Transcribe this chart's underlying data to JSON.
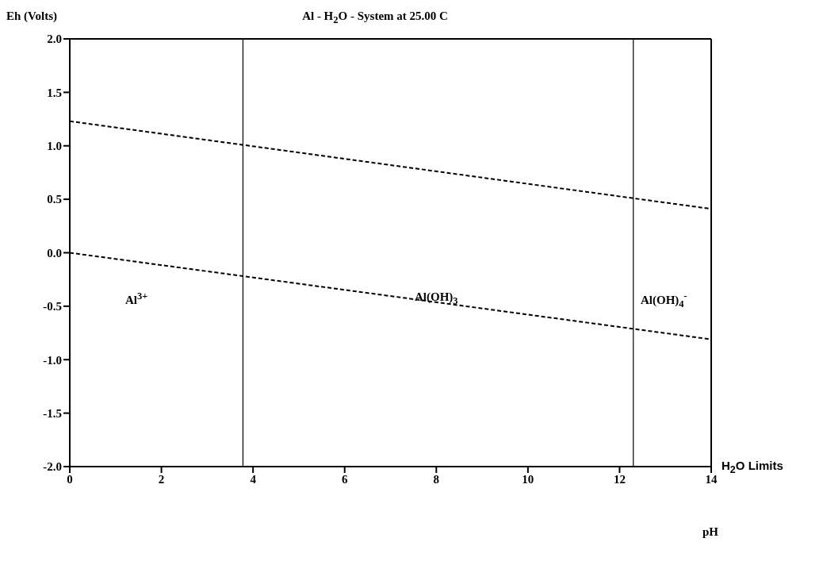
{
  "chart_data": {
    "type": "line",
    "title": "Al - H$_{2}$O - System at 25.00 C",
    "xlabel": "pH",
    "ylabel": "Eh (Volts)",
    "xlim": [
      0,
      14
    ],
    "xticks": [
      0,
      2,
      4,
      6,
      8,
      10,
      12,
      14
    ],
    "ylim": [
      -2,
      2
    ],
    "yticks": [
      {
        "value": -2,
        "label": "-2.0"
      },
      -1.5,
      {
        "value": -1,
        "label": "-1.0"
      },
      -0.5,
      {
        "value": 0,
        "label": "0.0"
      },
      0.5,
      {
        "value": 1,
        "label": "1.0"
      },
      1.5,
      {
        "value": 2,
        "label": "2.0"
      }
    ],
    "legend": false,
    "marker": "none",
    "line_style": "dashed",
    "x": [
      0,
      14
    ],
    "series": [
      {
        "color": "#000000",
        "values": [
          1.23,
          0.41
        ]
      },
      {
        "color": "#000000",
        "values": [
          0.0,
          -0.81
        ]
      }
    ],
    "ref_lines": [
      {
        "axis": "x",
        "value": 3.78,
        "color": "#000000",
        "line_style": "solid"
      },
      {
        "axis": "x",
        "value": 12.3,
        "color": "#000000",
        "line_style": "solid"
      }
    ],
    "annotations": [
      "Al$^{3+}$",
      "Al(OH)$_{3}$",
      "Al(OH)$_{4}$$^{-}$",
      "H$_{2}$O Limits"
    ]
  }
}
